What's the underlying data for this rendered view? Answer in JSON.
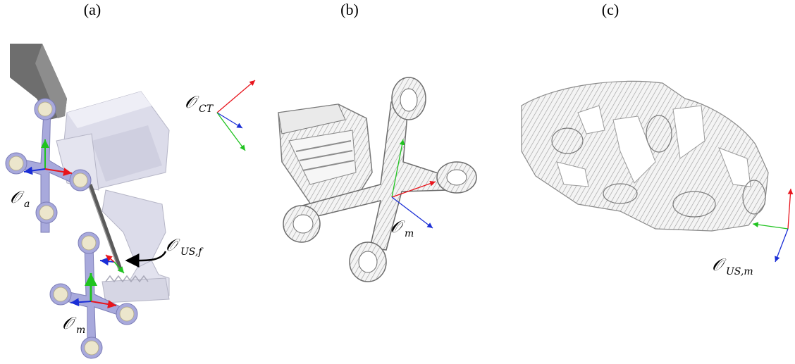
{
  "panels": [
    {
      "label": "(a)"
    },
    {
      "label": "(b)"
    },
    {
      "label": "(c)"
    }
  ],
  "frames": {
    "a_ct": {
      "symbol": "𝒪",
      "subscript": "CT"
    },
    "a_a": {
      "symbol": "𝒪",
      "subscript": "a"
    },
    "a_us_f": {
      "symbol": "𝒪",
      "subscript": "US,f"
    },
    "a_m": {
      "symbol": "𝒪",
      "subscript": "m"
    },
    "b_m": {
      "symbol": "𝒪",
      "subscript": "m"
    },
    "c_us_m": {
      "symbol": "𝒪",
      "subscript": "US,m"
    }
  },
  "axis_colors": {
    "x": "#e8141c",
    "y": "#1fc31f",
    "z": "#1a2ed6"
  },
  "colors": {
    "marker_body": "#a8a9dc",
    "marker_disc": "#ece6cc",
    "fixture_body": "#dcdcea",
    "probe_dark": "#6e6e6e",
    "cloud_fill": "#f3f3f3",
    "cloud_stroke": "#8a8a8a"
  }
}
